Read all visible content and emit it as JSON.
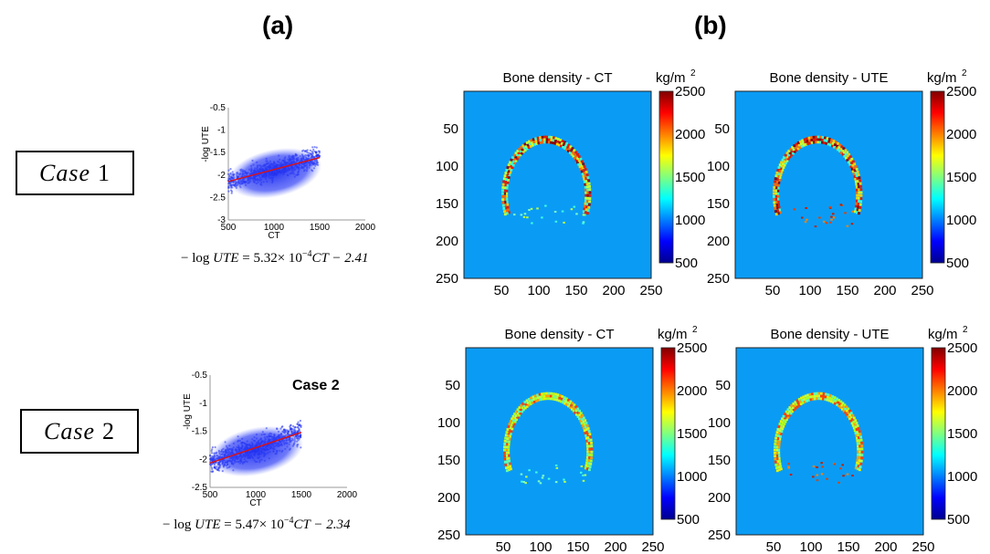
{
  "panel_labels": {
    "a": "(a)",
    "b": "(b)"
  },
  "cases": [
    {
      "box_label": "Case",
      "box_num": "1",
      "equation": {
        "lhs": "− log ",
        "var": "UTE",
        "rhs_coeff": " = 5.32× 10",
        "exp": "−4",
        "rhs_tail": "CT − 2.41"
      }
    },
    {
      "box_label": "Case",
      "box_num": "2",
      "equation": {
        "lhs": "− log ",
        "var": "UTE",
        "rhs_coeff": " = 5.47× 10",
        "exp": "−4",
        "rhs_tail": "CT − 2.34"
      },
      "inline_label": "Case 2"
    }
  ],
  "chart_data": [
    {
      "type": "scatter",
      "title": "",
      "xlabel": "CT",
      "ylabel": "-log UTE",
      "xlim": [
        500,
        2000
      ],
      "ylim": [
        -3,
        -0.5
      ],
      "xticks": [
        "500",
        "1000",
        "1500",
        "2000"
      ],
      "yticks": [
        "-0.5",
        "-1",
        "-1.5",
        "-2",
        "-2.5",
        "-3"
      ],
      "point_color": "#1f2ff0",
      "fit": {
        "slope": 0.000532,
        "intercept": -2.41,
        "color": "#e01010",
        "x_range": [
          500,
          1500
        ]
      }
    },
    {
      "type": "scatter",
      "title": "",
      "xlabel": "CT",
      "ylabel": "-log UTE",
      "xlim": [
        500,
        2000
      ],
      "ylim": [
        -2.5,
        -0.5
      ],
      "xticks": [
        "500",
        "1000",
        "1500",
        "2000"
      ],
      "yticks": [
        "-0.5",
        "-1",
        "-1.5",
        "-2",
        "-2.5"
      ],
      "point_color": "#1f2ff0",
      "fit": {
        "slope": 0.000547,
        "intercept": -2.34,
        "color": "#e01010",
        "x_range": [
          500,
          1500
        ]
      }
    },
    {
      "type": "heatmap",
      "title": "Bone density - CT",
      "unit_label": "kg/m",
      "unit_sup": "2",
      "xticks": [
        "50",
        "100",
        "150",
        "200",
        "250"
      ],
      "yticks": [
        "50",
        "100",
        "150",
        "200",
        "250"
      ],
      "colorbar_ticks": [
        "2500",
        "2000",
        "1500",
        "1000",
        "500"
      ],
      "clim": [
        500,
        2500
      ],
      "background_color": "#0a9cf5",
      "ring_style": "hot"
    },
    {
      "type": "heatmap",
      "title": "Bone density - UTE",
      "unit_label": "kg/m",
      "unit_sup": "2",
      "xticks": [
        "50",
        "100",
        "150",
        "200",
        "250"
      ],
      "yticks": [
        "50",
        "100",
        "150",
        "200",
        "250"
      ],
      "colorbar_ticks": [
        "2500",
        "2000",
        "1500",
        "1000",
        "500"
      ],
      "clim": [
        500,
        2500
      ],
      "background_color": "#0a9cf5",
      "ring_style": "hot"
    },
    {
      "type": "heatmap",
      "title": "Bone density - CT",
      "unit_label": "kg/m",
      "unit_sup": "2",
      "xticks": [
        "50",
        "100",
        "150",
        "200",
        "250"
      ],
      "yticks": [
        "50",
        "100",
        "150",
        "200",
        "250"
      ],
      "colorbar_ticks": [
        "2500",
        "2000",
        "1500",
        "1000",
        "500"
      ],
      "clim": [
        500,
        2500
      ],
      "background_color": "#0a9cf5",
      "ring_style": "warm"
    },
    {
      "type": "heatmap",
      "title": "Bone density - UTE",
      "unit_label": "kg/m",
      "unit_sup": "2",
      "xticks": [
        "50",
        "100",
        "150",
        "200",
        "250"
      ],
      "yticks": [
        "50",
        "100",
        "150",
        "200",
        "250"
      ],
      "colorbar_ticks": [
        "2500",
        "2000",
        "1500",
        "1000",
        "500"
      ],
      "clim": [
        500,
        2500
      ],
      "background_color": "#0a9cf5",
      "ring_style": "warm"
    }
  ]
}
